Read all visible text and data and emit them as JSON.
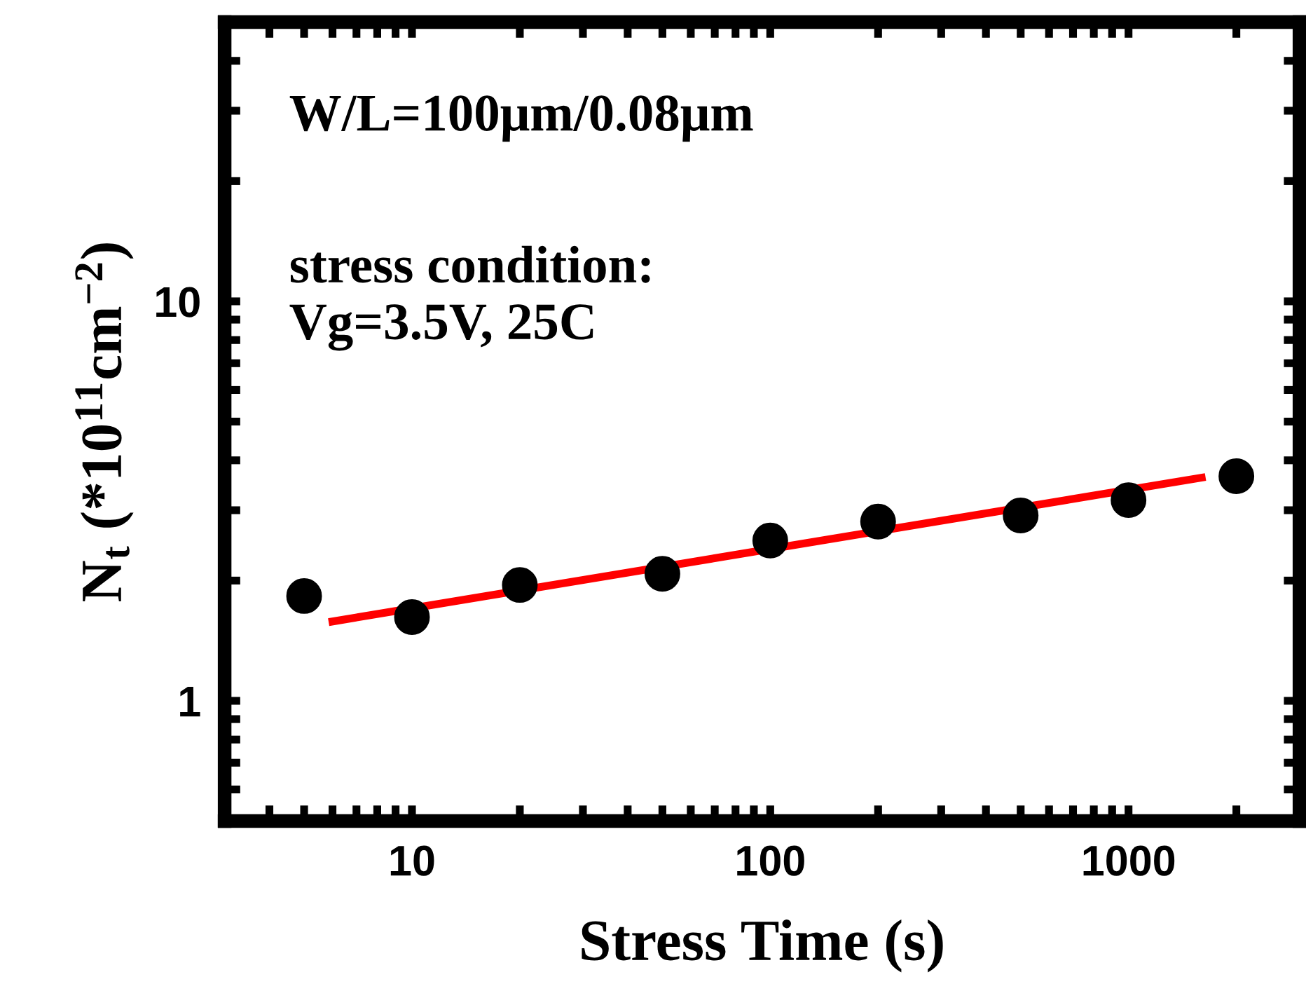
{
  "chart_data": {
    "type": "scatter",
    "xlabel": "Stress Time (s)",
    "ylabel": "N$_{t}$ (*10$^{11}$cm$^{−2}$)",
    "annotations": [
      "W/L=100μm/0.08μm",
      "stress condition:\nVg=3.5V, 25C"
    ],
    "log": "xy",
    "xlim": [
      3,
      3000
    ],
    "ylim": [
      0.5,
      50
    ],
    "xticks": [
      {
        "value": 4,
        "label": null
      },
      {
        "value": 5,
        "label": null
      },
      {
        "value": 6,
        "label": null
      },
      {
        "value": 7,
        "label": null
      },
      {
        "value": 8,
        "label": null
      },
      {
        "value": 9,
        "label": null
      },
      10,
      {
        "value": 20,
        "label": null
      },
      {
        "value": 30,
        "label": null
      },
      {
        "value": 40,
        "label": null
      },
      {
        "value": 50,
        "label": null
      },
      {
        "value": 60,
        "label": null
      },
      {
        "value": 70,
        "label": null
      },
      {
        "value": 80,
        "label": null
      },
      {
        "value": 90,
        "label": null
      },
      100,
      {
        "value": 200,
        "label": null
      },
      {
        "value": 300,
        "label": null
      },
      {
        "value": 400,
        "label": null
      },
      {
        "value": 500,
        "label": null
      },
      {
        "value": 600,
        "label": null
      },
      {
        "value": 700,
        "label": null
      },
      {
        "value": 800,
        "label": null
      },
      {
        "value": 900,
        "label": null
      },
      1000,
      {
        "value": 2000,
        "label": null
      }
    ],
    "yticks": [
      {
        "value": 0.6,
        "label": null
      },
      {
        "value": 0.7,
        "label": null
      },
      {
        "value": 0.8,
        "label": null
      },
      {
        "value": 0.9,
        "label": null
      },
      1,
      {
        "value": 2,
        "label": null
      },
      {
        "value": 3,
        "label": null
      },
      {
        "value": 4,
        "label": null
      },
      {
        "value": 5,
        "label": null
      },
      {
        "value": 6,
        "label": null
      },
      {
        "value": 7,
        "label": null
      },
      {
        "value": 8,
        "label": null
      },
      {
        "value": 9,
        "label": null
      },
      10,
      {
        "value": 20,
        "label": null
      },
      {
        "value": 30,
        "label": null
      },
      {
        "value": 40,
        "label": null
      },
      {
        "value": 50,
        "label": null
      }
    ],
    "marker": "circle",
    "grid": false,
    "legend": false,
    "series": [
      {
        "color": "#000000",
        "x": [
          5,
          10,
          20,
          50,
          100,
          200,
          500,
          1000,
          2000
        ],
        "values": [
          1.83,
          1.62,
          1.95,
          2.08,
          2.52,
          2.81,
          2.91,
          3.18,
          3.65
        ]
      },
      {
        "type": "line",
        "color": "#ff0000",
        "x": [
          6,
          1600
        ],
        "values": [
          1.58,
          3.62
        ],
        "marker": "none",
        "line_style": "solid"
      }
    ]
  }
}
